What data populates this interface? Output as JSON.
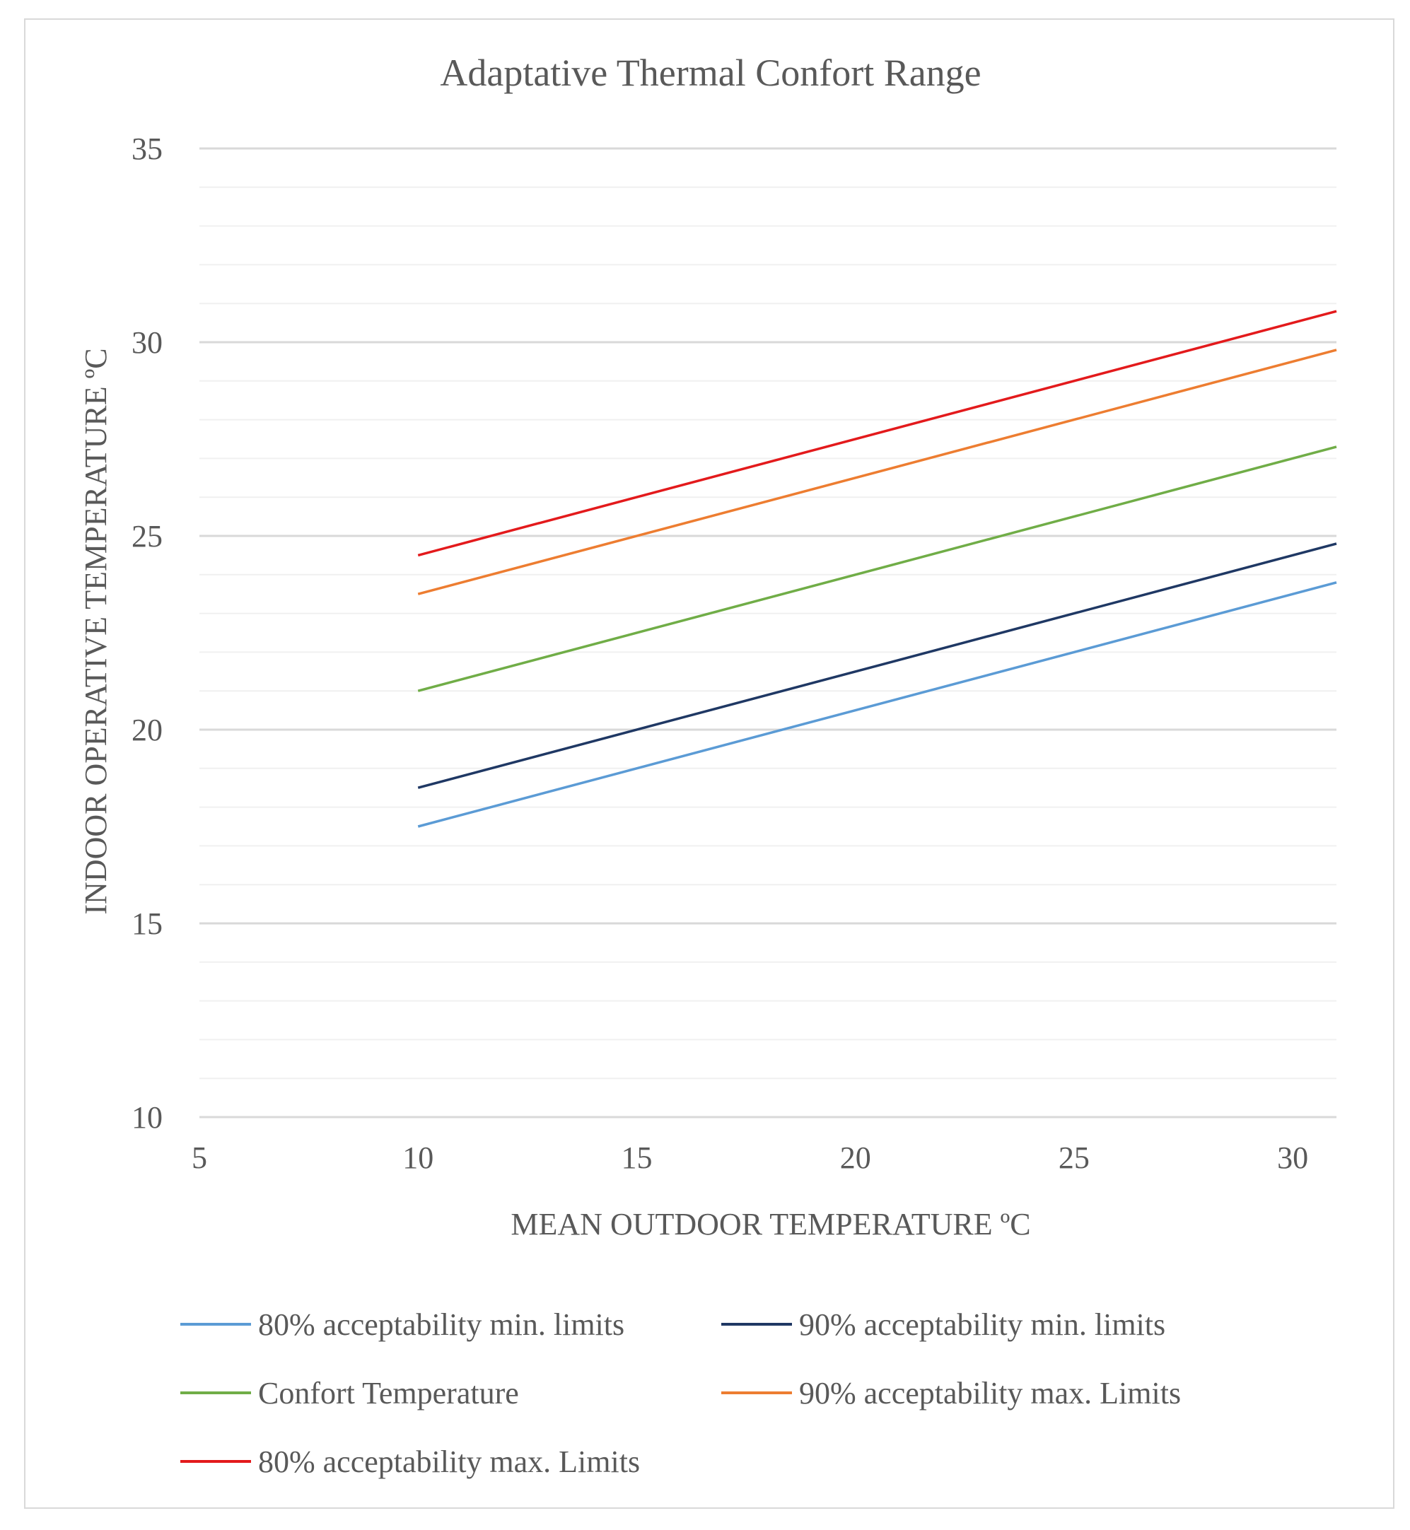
{
  "chart_data": {
    "type": "line",
    "title": "Adaptative Thermal Confort Range",
    "xlabel": "MEAN OUTDOOR TEMPERATURE  ºC",
    "ylabel": "INDOOR OPERATIVE TEMPERATURE  ºC",
    "xlim": [
      5,
      31
    ],
    "ylim": [
      10,
      35
    ],
    "x_ticks": [
      "5",
      "10",
      "15",
      "20",
      "25",
      "30"
    ],
    "y_ticks": [
      "10",
      "15",
      "20",
      "25",
      "30",
      "35"
    ],
    "grid": true,
    "legend_position": "bottom",
    "x": [
      10,
      31
    ],
    "series": [
      {
        "name": "80% acceptability min. limits",
        "color": "#5b9bd5",
        "values": [
          17.5,
          23.8
        ]
      },
      {
        "name": "90% acceptability min. limits",
        "color": "#1f3864",
        "values": [
          18.5,
          24.8
        ]
      },
      {
        "name": "Confort Temperature",
        "color": "#70ad47",
        "values": [
          21.0,
          27.3
        ]
      },
      {
        "name": "90% acceptability max. Limits",
        "color": "#ed7d31",
        "values": [
          23.5,
          29.8
        ]
      },
      {
        "name": "80% acceptability max. Limits",
        "color": "#e31a1c",
        "values": [
          24.5,
          30.8
        ]
      }
    ]
  }
}
